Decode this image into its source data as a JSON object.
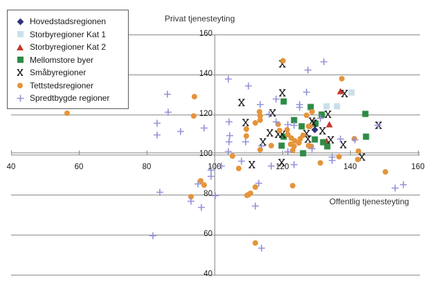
{
  "titles": {
    "y_axis_title": "Privat tjenesteyting",
    "x_axis_title": "Offentlig tjenesteyting"
  },
  "colors": {
    "hovedstad": "#31317e",
    "storby1": "#c9e0ea",
    "storby2": "#c8372d",
    "mellomstore": "#2e8b47",
    "smaaby": "#1a1a1a",
    "tettsted": "#e5943a",
    "spredt": "#9191d9",
    "grid": "#8a8a8a",
    "text": "#1a1a1a"
  },
  "legend": {
    "items": [
      {
        "label": "Hovedstadsregionen",
        "shape": "diamond",
        "color": "#31317e"
      },
      {
        "label": "Storbyregioner Kat 1",
        "shape": "square",
        "color": "#c9e0ea"
      },
      {
        "label": "Storbyregioner Kat 2",
        "shape": "triangle",
        "color": "#c8372d"
      },
      {
        "label": "Mellomstore byer",
        "shape": "square",
        "color": "#2e8b47"
      },
      {
        "label": "Småbyregioner",
        "shape": "x",
        "color": "#1a1a1a"
      },
      {
        "label": "Tettstedsregioner",
        "shape": "circle",
        "color": "#e5943a"
      },
      {
        "label": "Spredtbygde regioner",
        "shape": "plus",
        "color": "#9191d9"
      }
    ]
  },
  "chart_data": {
    "type": "scatter",
    "title": "",
    "xlabel": "Offentlig tjenesteyting",
    "ylabel": "Privat tjenesteyting",
    "xlim": [
      40,
      160
    ],
    "ylim": [
      40,
      160
    ],
    "x_ticks": [
      40,
      60,
      80,
      100,
      120,
      140,
      160
    ],
    "y_ticks": [
      40,
      60,
      80,
      100,
      120,
      140,
      160
    ],
    "grid": "horizontal",
    "axes_cross_at": [
      100,
      100
    ],
    "legend_position": "top-left",
    "series": [
      {
        "name": "Hovedstadsregionen",
        "marker": "diamond",
        "color": "#31317e",
        "points": [
          [
            129.5,
            112.5
          ]
        ]
      },
      {
        "name": "Storbyregioner Kat 1",
        "marker": "square",
        "color": "#c9e0ea",
        "points": [
          [
            140.5,
            131.0
          ],
          [
            133.1,
            124.3
          ],
          [
            136.2,
            124.3
          ]
        ]
      },
      {
        "name": "Storbyregioner Kat 2",
        "marker": "triangle",
        "color": "#c8372d",
        "points": [
          [
            137.2,
            130.3
          ],
          [
            133.9,
            113.6
          ],
          [
            133.1,
            105.5
          ]
        ]
      },
      {
        "name": "Mellomstore byer",
        "marker": "square",
        "color": "#2e8b47",
        "points": [
          [
            120.4,
            126.5
          ],
          [
            128.4,
            123.8
          ],
          [
            144.5,
            120.2
          ],
          [
            131.6,
            120.1
          ],
          [
            123.4,
            117.1
          ],
          [
            129.8,
            115.4
          ],
          [
            125.8,
            114.1
          ],
          [
            120.4,
            109.1
          ],
          [
            119.8,
            104.6
          ],
          [
            129.5,
            107.6
          ],
          [
            132.0,
            106.3
          ],
          [
            133.3,
            104.0
          ],
          [
            126.1,
            100.6
          ],
          [
            144.7,
            109.1
          ]
        ]
      },
      {
        "name": "Småbyregioner",
        "marker": "x",
        "color": "#1a1a1a",
        "points": [
          [
            120.1,
            144.8
          ],
          [
            120.0,
            130.5
          ],
          [
            108.0,
            125.4
          ],
          [
            117.1,
            120.2
          ],
          [
            109.1,
            115.4
          ],
          [
            128.8,
            116.2
          ],
          [
            129.2,
            115.2
          ],
          [
            133.4,
            119.5
          ],
          [
            131.9,
            111.4
          ],
          [
            127.1,
            110.0
          ],
          [
            116.3,
            110.5
          ],
          [
            118.8,
            109.7
          ],
          [
            120.0,
            109.8
          ],
          [
            114.2,
            105.7
          ],
          [
            127.5,
            107.4
          ],
          [
            134.3,
            106.9
          ],
          [
            138.0,
            104.5
          ],
          [
            143.5,
            98.3
          ],
          [
            111.0,
            94.5
          ],
          [
            119.8,
            95.5
          ],
          [
            148.4,
            114.0
          ],
          [
            138.3,
            130.0
          ]
        ]
      },
      {
        "name": "Tettstedsregioner",
        "marker": "circle",
        "color": "#e5943a",
        "points": [
          [
            56.5,
            120.8
          ],
          [
            94.0,
            128.8
          ],
          [
            93.9,
            119.2
          ],
          [
            120.2,
            147.0
          ],
          [
            137.5,
            137.8
          ],
          [
            113.2,
            121.4
          ],
          [
            113.5,
            119.2
          ],
          [
            112.0,
            116.0
          ],
          [
            113.5,
            117.1
          ],
          [
            109.3,
            112.6
          ],
          [
            109.3,
            109.4
          ],
          [
            118.8,
            115.1
          ],
          [
            119.2,
            112.0
          ],
          [
            121.4,
            112.3
          ],
          [
            116.8,
            104.6
          ],
          [
            113.5,
            102.3
          ],
          [
            105.4,
            99.4
          ],
          [
            107.1,
            93.1
          ],
          [
            121.6,
            110.0
          ],
          [
            122.7,
            108.3
          ],
          [
            123.7,
            106.9
          ],
          [
            124.8,
            105.7
          ],
          [
            122.4,
            105.1
          ],
          [
            123.4,
            104.0
          ],
          [
            126.1,
            109.7
          ],
          [
            125.4,
            108.0
          ],
          [
            127.8,
            104.6
          ],
          [
            128.6,
            104.0
          ],
          [
            127.8,
            114.3
          ],
          [
            128.2,
            114.1
          ],
          [
            127.2,
            119.5
          ],
          [
            128.7,
            121.4
          ],
          [
            141.2,
            107.9
          ],
          [
            142.4,
            101.7
          ],
          [
            136.7,
            98.9
          ],
          [
            142.3,
            97.7
          ],
          [
            123.1,
            101.9
          ],
          [
            131.2,
            95.8
          ],
          [
            150.4,
            91.5
          ],
          [
            123.1,
            84.6
          ],
          [
            110.0,
            80.0
          ],
          [
            110.7,
            80.8
          ],
          [
            109.5,
            79.7
          ],
          [
            112.0,
            83.7
          ],
          [
            95.9,
            86.9
          ],
          [
            96.9,
            84.8
          ],
          [
            93.0,
            78.9
          ],
          [
            112.0,
            56.0
          ]
        ]
      },
      {
        "name": "Spredtbygde regioner",
        "marker": "plus",
        "color": "#9191d9",
        "points": [
          [
            86.2,
            129.5
          ],
          [
            86.3,
            120.8
          ],
          [
            83.1,
            115.2
          ],
          [
            83.1,
            109.2
          ],
          [
            90.1,
            110.9
          ],
          [
            96.9,
            112.6
          ],
          [
            104.1,
            137.4
          ],
          [
            110.1,
            133.7
          ],
          [
            132.2,
            145.7
          ],
          [
            127.5,
            141.7
          ],
          [
            127.1,
            130.6
          ],
          [
            125.2,
            124.5
          ],
          [
            125.2,
            123.2
          ],
          [
            118.2,
            127.1
          ],
          [
            113.4,
            124.6
          ],
          [
            116.1,
            119.6
          ],
          [
            104.2,
            115.8
          ],
          [
            104.4,
            109.1
          ],
          [
            104.2,
            105.9
          ],
          [
            109.1,
            105.9
          ],
          [
            113.9,
            103.7
          ],
          [
            104.0,
            101.1
          ],
          [
            108.0,
            96.3
          ],
          [
            102.0,
            93.7
          ],
          [
            116.8,
            93.7
          ],
          [
            121.6,
            114.5
          ],
          [
            123.4,
            114.1
          ],
          [
            137.1,
            107.4
          ],
          [
            141.4,
            106.9
          ],
          [
            131.2,
            117.5
          ],
          [
            128.8,
            102.3
          ],
          [
            121.7,
            101.1
          ],
          [
            134.6,
            98.3
          ],
          [
            134.6,
            96.6
          ],
          [
            123.4,
            94.6
          ],
          [
            98.9,
            91.7
          ],
          [
            98.9,
            88.6
          ],
          [
            100.3,
            78.8
          ],
          [
            95.2,
            84.8
          ],
          [
            93.0,
            76.1
          ],
          [
            96.1,
            73.2
          ],
          [
            83.9,
            80.6
          ],
          [
            112.0,
            73.7
          ],
          [
            113.0,
            85.1
          ],
          [
            81.8,
            58.9
          ],
          [
            113.9,
            52.6
          ],
          [
            153.3,
            82.9
          ],
          [
            155.7,
            84.6
          ],
          [
            148.2,
            114.2
          ],
          [
            118.2,
            115.8
          ]
        ]
      }
    ]
  }
}
